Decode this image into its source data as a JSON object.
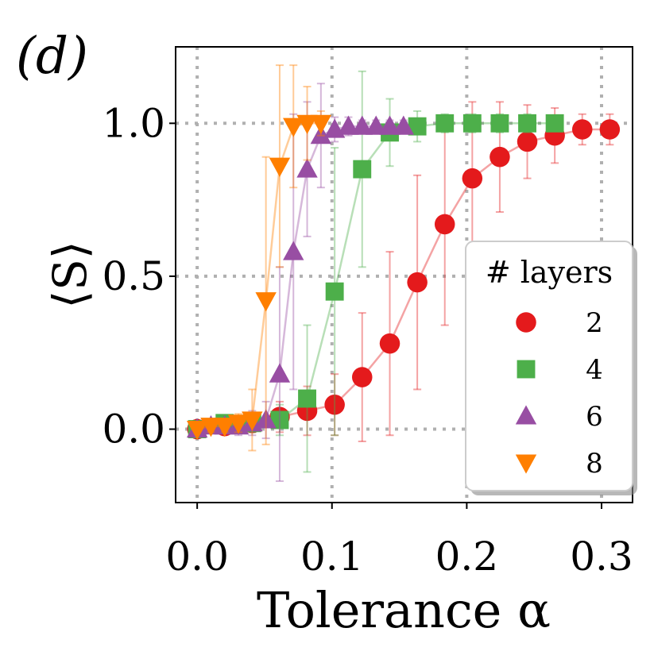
{
  "chart_data": {
    "type": "scatter",
    "panel_label": "(d)",
    "xlabel": "Tolerance α",
    "ylabel": "⟨S⟩",
    "xlim": [
      -0.016,
      0.323
    ],
    "ylim": [
      -0.24,
      1.25
    ],
    "xticks": [
      {
        "value": 0.0,
        "label": "0.0"
      },
      {
        "value": 0.1,
        "label": "0.1"
      },
      {
        "value": 0.2,
        "label": "0.2"
      },
      {
        "value": 0.3,
        "label": "0.3"
      }
    ],
    "yticks": [
      {
        "value": 0.0,
        "label": "0.0"
      },
      {
        "value": 0.5,
        "label": "0.5"
      },
      {
        "value": 1.0,
        "label": "1.0"
      }
    ],
    "grid": true,
    "legend": {
      "title": "# layers",
      "position": "right"
    },
    "series": [
      {
        "name": "2",
        "marker": "circle",
        "color": "#e41a1c",
        "x": [
          0.0,
          0.0204,
          0.0408,
          0.0612,
          0.0816,
          0.102,
          0.1224,
          0.1429,
          0.1633,
          0.1837,
          0.2041,
          0.2245,
          0.2449,
          0.2653,
          0.2857,
          0.3061
        ],
        "y": [
          0.0,
          0.01,
          0.02,
          0.04,
          0.06,
          0.08,
          0.17,
          0.28,
          0.48,
          0.67,
          0.82,
          0.89,
          0.94,
          0.96,
          0.98,
          0.98
        ],
        "err": [
          0.01,
          0.02,
          0.03,
          0.05,
          0.08,
          0.1,
          0.21,
          0.3,
          0.35,
          0.33,
          0.25,
          0.18,
          0.12,
          0.09,
          0.05,
          0.05
        ]
      },
      {
        "name": "4",
        "marker": "square",
        "color": "#4daf4a",
        "x": [
          0.0,
          0.0204,
          0.0408,
          0.0612,
          0.0816,
          0.102,
          0.1224,
          0.1429,
          0.1633,
          0.1837,
          0.2041,
          0.2245,
          0.2449,
          0.2653
        ],
        "y": [
          0.0,
          0.02,
          0.02,
          0.03,
          0.1,
          0.45,
          0.85,
          0.97,
          0.99,
          1.0,
          1.0,
          1.0,
          1.0,
          1.0
        ],
        "err": [
          0.01,
          0.02,
          0.03,
          0.05,
          0.24,
          0.47,
          0.32,
          0.11,
          0.05,
          0.03,
          0.03,
          0.03,
          0.03,
          0.02
        ]
      },
      {
        "name": "6",
        "marker": "triangle-up",
        "color": "#984ea3",
        "x": [
          0.0,
          0.0102,
          0.0204,
          0.0306,
          0.0408,
          0.051,
          0.0612,
          0.0714,
          0.0816,
          0.0918,
          0.102,
          0.1122,
          0.1224,
          0.1327,
          0.1429,
          0.1531
        ],
        "y": [
          0.0,
          0.01,
          0.01,
          0.01,
          0.02,
          0.03,
          0.18,
          0.58,
          0.85,
          0.96,
          0.98,
          0.99,
          0.99,
          0.99,
          0.99,
          0.99
        ],
        "err": [
          0.01,
          0.02,
          0.02,
          0.03,
          0.04,
          0.06,
          0.35,
          0.45,
          0.22,
          0.17,
          0.04,
          0.03,
          0.02,
          0.02,
          0.02,
          0.02
        ]
      },
      {
        "name": "8",
        "marker": "triangle-down",
        "color": "#ff7f00",
        "x": [
          0.0,
          0.0102,
          0.0204,
          0.0306,
          0.0408,
          0.051,
          0.0612,
          0.0714,
          0.0816,
          0.0918
        ],
        "y": [
          0.0,
          0.01,
          0.01,
          0.02,
          0.03,
          0.42,
          0.86,
          0.99,
          1.0,
          1.0
        ],
        "err": [
          0.01,
          0.02,
          0.02,
          0.03,
          0.1,
          0.47,
          0.33,
          0.2,
          0.12,
          0.04
        ]
      }
    ]
  }
}
